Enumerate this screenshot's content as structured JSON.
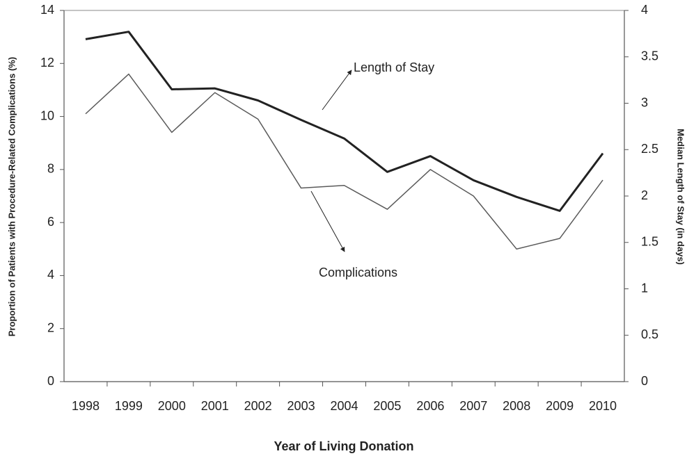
{
  "chart_data": {
    "type": "line",
    "xlabel": "Year of Living Donation",
    "ylabel": "Proportion of Patients with Procedure-Related Complications (%)",
    "y2label": "Median Length of Stay (in days)",
    "categories": [
      "1998",
      "1999",
      "2000",
      "2001",
      "2002",
      "2003",
      "2004",
      "2005",
      "2006",
      "2007",
      "2008",
      "2009",
      "2010"
    ],
    "series": [
      {
        "name": "Length of Stay",
        "color": "#222222",
        "axis": "y2",
        "values": [
          3.69,
          3.77,
          3.15,
          3.16,
          3.03,
          2.82,
          2.62,
          2.26,
          2.43,
          2.17,
          1.99,
          1.84,
          2.46
        ]
      },
      {
        "name": "Complications",
        "color": "#5a5a5a",
        "values": [
          10.1,
          11.6,
          9.4,
          10.9,
          9.9,
          7.3,
          7.4,
          6.5,
          8.0,
          7.0,
          5.0,
          5.4,
          7.6
        ]
      }
    ],
    "ylim": [
      0,
      14
    ],
    "yticks": [
      0,
      2,
      4,
      6,
      8,
      10,
      12,
      14
    ],
    "y2lim": [
      0,
      4
    ],
    "y2ticks": [
      0,
      0.5,
      1,
      1.5,
      2,
      2.5,
      3,
      3.5,
      4
    ]
  }
}
